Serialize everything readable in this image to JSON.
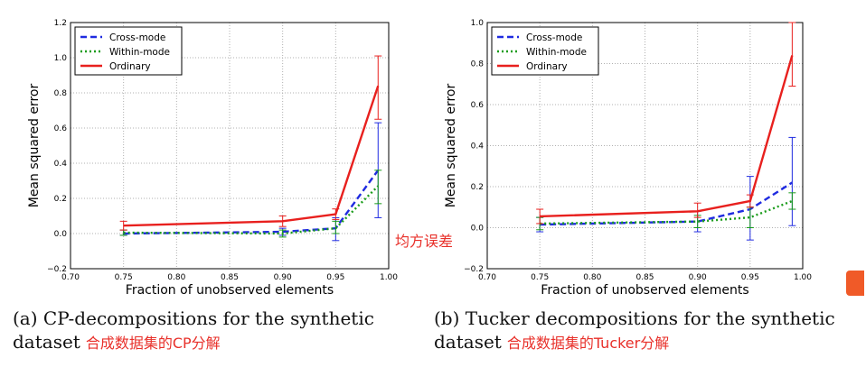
{
  "chart_data": [
    {
      "type": "line",
      "xlabel": "Fraction of unobserved elements",
      "ylabel": "Mean squared error",
      "xlim": [
        0.7,
        1.0
      ],
      "ylim": [
        -0.2,
        1.2
      ],
      "xticks": [
        "0.70",
        "0.75",
        "0.80",
        "0.85",
        "0.90",
        "0.95",
        "1.00"
      ],
      "yticks": [
        "−0.2",
        "0.0",
        "0.2",
        "0.4",
        "0.6",
        "0.8",
        "1.0",
        "1.2"
      ],
      "grid": true,
      "legend_position": "top-left",
      "x": [
        0.75,
        0.9,
        0.95,
        0.99
      ],
      "series": [
        {
          "name": "Cross-mode",
          "color": "#1f2be0",
          "style": "dashed",
          "values": [
            0.0,
            0.01,
            0.03,
            0.36
          ],
          "err_low": [
            -0.01,
            -0.01,
            -0.04,
            0.09
          ],
          "err_high": [
            0.02,
            0.03,
            0.09,
            0.63
          ]
        },
        {
          "name": "Within-mode",
          "color": "#1a9c1a",
          "style": "dotted",
          "values": [
            0.005,
            0.0,
            0.03,
            0.27
          ],
          "err_low": [
            -0.01,
            -0.02,
            0.0,
            0.17
          ],
          "err_high": [
            0.02,
            0.02,
            0.07,
            0.36
          ]
        },
        {
          "name": "Ordinary",
          "color": "#e8201e",
          "style": "solid",
          "values": [
            0.045,
            0.07,
            0.11,
            0.84
          ],
          "err_low": [
            0.02,
            0.04,
            0.08,
            0.65
          ],
          "err_high": [
            0.07,
            0.1,
            0.14,
            1.01
          ]
        }
      ]
    },
    {
      "type": "line",
      "xlabel": "Fraction of unobserved elements",
      "ylabel": "Mean squared error",
      "xlim": [
        0.7,
        1.0
      ],
      "ylim": [
        -0.2,
        1.0
      ],
      "xticks": [
        "0.70",
        "0.75",
        "0.80",
        "0.85",
        "0.90",
        "0.95",
        "1.00"
      ],
      "yticks": [
        "−0.2",
        "0.0",
        "0.2",
        "0.4",
        "0.6",
        "0.8",
        "1.0"
      ],
      "grid": true,
      "legend_position": "top-left",
      "x": [
        0.75,
        0.9,
        0.95,
        0.99
      ],
      "series": [
        {
          "name": "Cross-mode",
          "color": "#1f2be0",
          "style": "dashed",
          "values": [
            0.015,
            0.03,
            0.09,
            0.22
          ],
          "err_low": [
            -0.02,
            -0.02,
            -0.06,
            0.01
          ],
          "err_high": [
            0.05,
            0.08,
            0.25,
            0.44
          ]
        },
        {
          "name": "Within-mode",
          "color": "#1a9c1a",
          "style": "dotted",
          "values": [
            0.02,
            0.03,
            0.05,
            0.13
          ],
          "err_low": [
            -0.01,
            0.0,
            0.0,
            0.09
          ],
          "err_high": [
            0.05,
            0.06,
            0.1,
            0.17
          ]
        },
        {
          "name": "Ordinary",
          "color": "#e8201e",
          "style": "solid",
          "values": [
            0.055,
            0.08,
            0.13,
            0.84
          ],
          "err_low": [
            0.02,
            0.05,
            0.1,
            0.69
          ],
          "err_high": [
            0.09,
            0.12,
            0.16,
            1.0
          ]
        }
      ]
    }
  ],
  "captions": {
    "a_text": "(a) CP-decompositions for the synthetic dataset",
    "a_cn": "合成数据集的CP分解",
    "b_text": "(b) Tucker decompositions for the synthetic dataset",
    "b_cn": "合成数据集的Tucker分解"
  },
  "annotation": "均方误差"
}
